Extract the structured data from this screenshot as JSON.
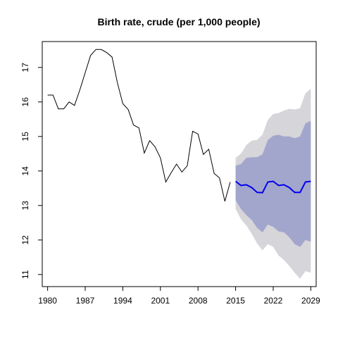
{
  "chart_data": {
    "type": "line",
    "title": "Birth rate, crude (per 1,000 people)",
    "xlabel": "",
    "ylabel": "",
    "xlim": [
      1979,
      2030
    ],
    "ylim": [
      10.65,
      17.75
    ],
    "x_ticks": [
      1980,
      1987,
      1994,
      2001,
      2008,
      2015,
      2022,
      2029
    ],
    "y_ticks": [
      11,
      12,
      13,
      14,
      15,
      16,
      17
    ],
    "grid": false,
    "legend": "none",
    "colors": {
      "history": "#000000",
      "forecast": "#0000ee",
      "band80": "#a3a6cc",
      "band95": "#d5d5da"
    },
    "history": {
      "x": [
        1980,
        1981,
        1982,
        1983,
        1984,
        1985,
        1986,
        1987,
        1988,
        1989,
        1990,
        1991,
        1992,
        1993,
        1994,
        1995,
        1996,
        1997,
        1998,
        1999,
        2000,
        2001,
        2002,
        2003,
        2004,
        2005,
        2006,
        2007,
        2008,
        2009,
        2010,
        2011,
        2012,
        2013,
        2014
      ],
      "values": [
        16.2,
        16.2,
        15.8,
        15.8,
        16.0,
        15.9,
        16.35,
        16.85,
        17.35,
        17.52,
        17.52,
        17.43,
        17.3,
        16.55,
        15.95,
        15.78,
        15.33,
        15.25,
        14.52,
        14.88,
        14.7,
        14.38,
        13.68,
        13.95,
        14.2,
        13.97,
        14.15,
        15.15,
        15.07,
        14.48,
        14.63,
        13.93,
        13.8,
        13.12,
        13.68
      ]
    },
    "forecast": {
      "x": [
        2015,
        2016,
        2017,
        2018,
        2019,
        2020,
        2021,
        2022,
        2023,
        2024,
        2025,
        2026,
        2027,
        2028,
        2029
      ],
      "values": [
        13.7,
        13.58,
        13.6,
        13.52,
        13.38,
        13.37,
        13.68,
        13.7,
        13.58,
        13.6,
        13.52,
        13.38,
        13.38,
        13.68,
        13.7
      ],
      "lo80": [
        13.15,
        12.9,
        12.72,
        12.58,
        12.35,
        12.22,
        12.45,
        12.38,
        12.25,
        12.22,
        12.08,
        11.88,
        11.8,
        12.0,
        11.95
      ],
      "hi80": [
        14.15,
        14.2,
        14.38,
        14.4,
        14.4,
        14.48,
        14.9,
        15.02,
        15.05,
        15.0,
        15.0,
        14.95,
        15.0,
        15.38,
        15.45
      ],
      "lo95": [
        12.9,
        12.6,
        12.42,
        12.18,
        11.9,
        11.7,
        11.88,
        11.8,
        11.55,
        11.42,
        11.25,
        11.05,
        10.88,
        11.1,
        11.05
      ],
      "hi95": [
        14.38,
        14.5,
        14.75,
        14.88,
        14.9,
        15.05,
        15.48,
        15.65,
        15.68,
        15.75,
        15.8,
        15.78,
        15.82,
        16.25,
        16.38
      ]
    }
  }
}
